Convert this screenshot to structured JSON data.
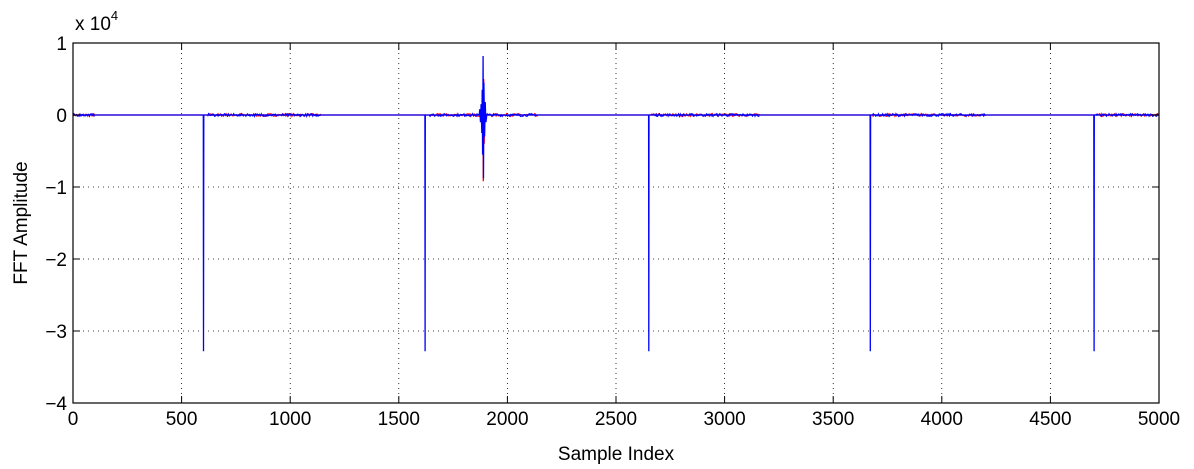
{
  "chart_data": {
    "type": "line",
    "title": "",
    "xlabel": "Sample Index",
    "ylabel": "FFT Amplitude",
    "xlim": [
      0,
      5000
    ],
    "ylim": [
      -4,
      1
    ],
    "y_exponent_label": "x 10",
    "y_exponent_power": "4",
    "xticks": [
      0,
      500,
      1000,
      1500,
      2000,
      2500,
      3000,
      3500,
      4000,
      4500,
      5000
    ],
    "yticks": [
      -4,
      -3,
      -2,
      -1,
      0,
      1
    ],
    "grid": true,
    "legend": "none",
    "series": [
      {
        "color": "#ff0000",
        "points": [
          [
            0,
            0
          ],
          [
            1885,
            0
          ],
          [
            1887,
            0.3
          ],
          [
            1889,
            -0.92
          ],
          [
            1891,
            0.5
          ],
          [
            1893,
            -0.4
          ],
          [
            1895,
            0
          ],
          [
            5000,
            0
          ]
        ],
        "noise_ranges": [
          [
            0,
            100
          ],
          [
            620,
            1140
          ],
          [
            1640,
            2140
          ],
          [
            2660,
            3160
          ],
          [
            3680,
            4200
          ],
          [
            4710,
            5000
          ]
        ]
      },
      {
        "color": "#0000ff",
        "points": [
          [
            0,
            0
          ],
          [
            600,
            0
          ],
          [
            601,
            -3.28
          ],
          [
            602,
            0
          ],
          [
            1620,
            0
          ],
          [
            1621,
            -3.28
          ],
          [
            1622,
            0
          ],
          [
            1870,
            0
          ],
          [
            1873,
            0.08
          ],
          [
            1876,
            -0.1
          ],
          [
            1879,
            0.15
          ],
          [
            1882,
            -0.25
          ],
          [
            1884,
            0.35
          ],
          [
            1886,
            -0.55
          ],
          [
            1888,
            0.82
          ],
          [
            1890,
            -0.88
          ],
          [
            1892,
            0.45
          ],
          [
            1895,
            -0.3
          ],
          [
            1898,
            0.18
          ],
          [
            1901,
            -0.1
          ],
          [
            1905,
            0
          ],
          [
            2650,
            0
          ],
          [
            2651,
            -3.28
          ],
          [
            2652,
            0
          ],
          [
            3670,
            0
          ],
          [
            3671,
            -3.28
          ],
          [
            3672,
            0
          ],
          [
            4700,
            0
          ],
          [
            4701,
            -3.28
          ],
          [
            4702,
            0
          ],
          [
            5000,
            0
          ]
        ],
        "noise_ranges": [
          [
            0,
            100
          ],
          [
            620,
            1140
          ],
          [
            1640,
            2140
          ],
          [
            2660,
            3160
          ],
          [
            3680,
            4200
          ],
          [
            4710,
            5000
          ]
        ]
      }
    ]
  }
}
